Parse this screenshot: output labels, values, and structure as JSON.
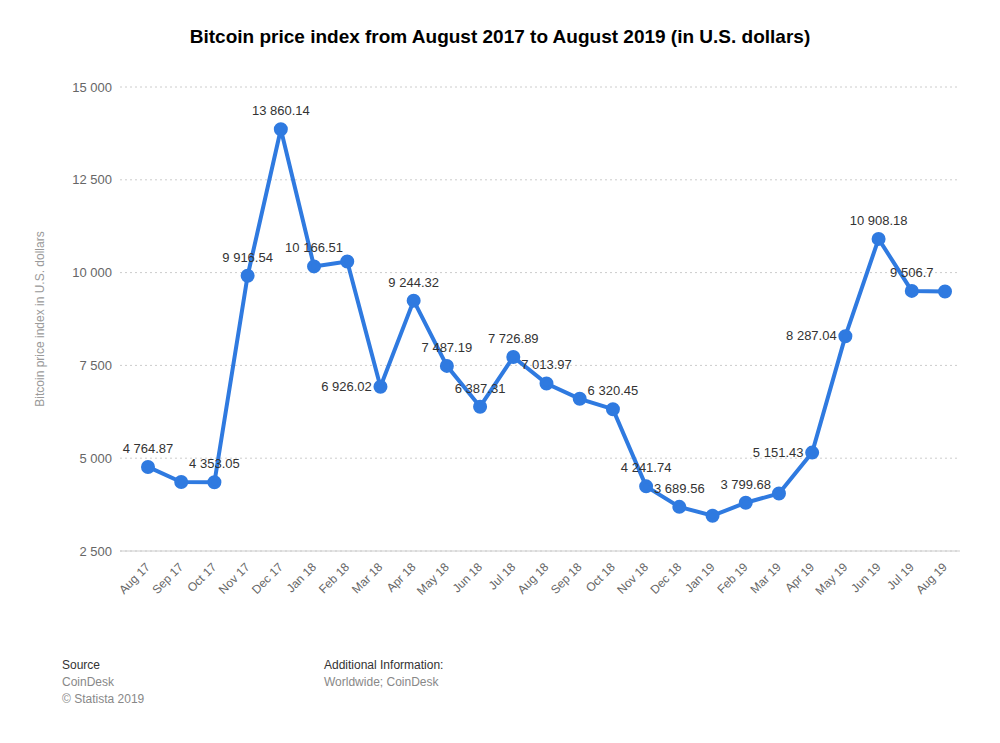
{
  "chart_data": {
    "type": "line",
    "title": "Bitcoin price index from August 2017 to August 2019 (in U.S. dollars)",
    "y_label": "Bitcoin price index in U.S. dollars",
    "categories": [
      "Aug 17",
      "Sep 17",
      "Oct 17",
      "Nov 17",
      "Dec 17",
      "Jan 18",
      "Feb 18",
      "Mar 18",
      "Apr 18",
      "May 18",
      "Jun 18",
      "Jul 18",
      "Aug 18",
      "Sep 18",
      "Oct 18",
      "Nov 18",
      "Dec 18",
      "Jan 19",
      "Feb 19",
      "Mar 19",
      "Apr 19",
      "May 19",
      "Jun 19",
      "Jul 19",
      "Aug 19"
    ],
    "values": [
      4764.87,
      4360,
      4353.05,
      9916.54,
      13860.14,
      10166.51,
      10300,
      6926.02,
      9244.32,
      7487.19,
      6387.31,
      7726.89,
      7013.97,
      6600,
      6320.45,
      4241.74,
      3689.56,
      3450,
      3799.68,
      4050,
      5151.43,
      8287.04,
      10908.18,
      9506.7,
      9490
    ],
    "value_labels": [
      "4 764.87",
      null,
      "4 353.05",
      "9 916.54",
      "13 860.14",
      "10 166.51",
      null,
      "6 926.02",
      "9 244.32",
      "7 487.19",
      "6 387.31",
      "7 726.89",
      "7 013.97",
      null,
      "6 320.45",
      "4 241.74",
      "3 689.56",
      null,
      "3 799.68",
      null,
      "5 151.43",
      "8 287.04",
      "10 908.18",
      "9 506.7",
      null
    ],
    "color": "#2f7ae0",
    "marker": "circle",
    "data_labels": true,
    "grid": true,
    "ylim": [
      2500,
      15000
    ],
    "yticks": [
      {
        "value": 2500,
        "label": "2 500"
      },
      {
        "value": 5000,
        "label": "5 000"
      },
      {
        "value": 7500,
        "label": "7 500"
      },
      {
        "value": 10000,
        "label": "10 000"
      },
      {
        "value": 12500,
        "label": "12 500"
      },
      {
        "value": 15000,
        "label": "15 000"
      }
    ],
    "footer": {
      "source_title": "Source",
      "source": "CoinDesk",
      "copyright": "© Statista 2019",
      "info_title": "Additional Information:",
      "info": "Worldwide; CoinDesk"
    }
  }
}
